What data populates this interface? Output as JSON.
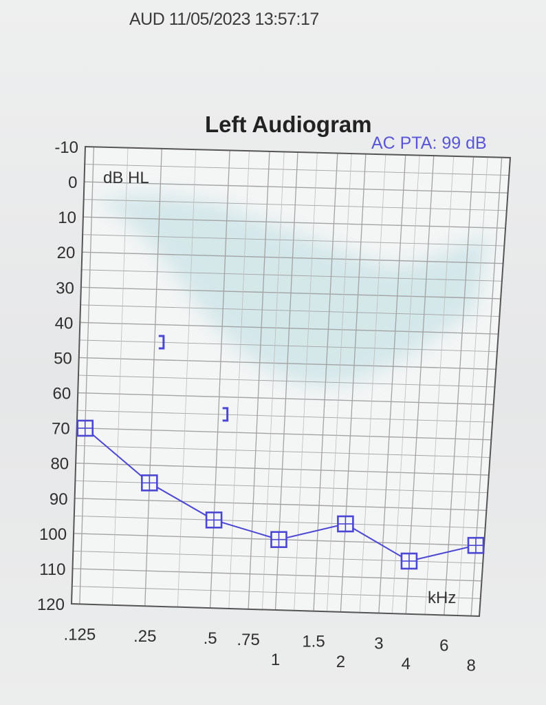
{
  "header": {
    "timestamp": "AUD 11/05/2023 13:57:17"
  },
  "chart_data": {
    "type": "line",
    "title": "Left Audiogram",
    "annotation": "AC PTA: 99 dB",
    "ylabel": "dB HL",
    "xlabel": "kHz",
    "ylim": [
      -10,
      120
    ],
    "y_inverted": true,
    "y_ticks": [
      "-10",
      "0",
      "10",
      "20",
      "30",
      "40",
      "50",
      "60",
      "70",
      "80",
      "90",
      "100",
      "110",
      "120"
    ],
    "x_ticks_top_row": [
      ".125",
      ".25",
      ".5",
      ".75",
      "1.5",
      "3",
      "6"
    ],
    "x_ticks_bottom_row": [
      "1",
      "2",
      "4",
      "8"
    ],
    "x_scale": "log",
    "grid": true,
    "colors": {
      "series": "#4b46d4",
      "normal_range_shade": "#cfe5e8",
      "grid": "#9a9a9a"
    },
    "series": [
      {
        "marker": "square",
        "x": [
          0.125,
          0.25,
          0.5,
          1,
          2,
          4,
          8
        ],
        "values": [
          70,
          85,
          95,
          100,
          95,
          105,
          100
        ]
      }
    ],
    "bone_conduction": {
      "marker": "right-bracket",
      "x": [
        0.25,
        0.5
      ],
      "values": [
        45,
        65
      ]
    }
  }
}
